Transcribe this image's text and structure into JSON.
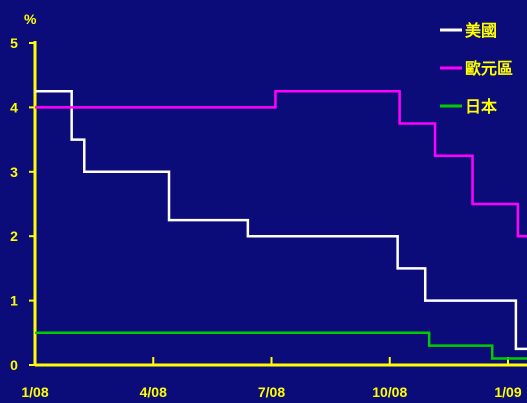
{
  "chart_data": {
    "type": "line",
    "title": "",
    "ylabel": "%",
    "xlabel": "",
    "ylim": [
      0,
      5
    ],
    "y_ticks": [
      "0",
      "1",
      "2",
      "3",
      "4",
      "5"
    ],
    "x_tick_labels": [
      "1/08",
      "4/08",
      "7/08",
      "10/08",
      "1/09"
    ],
    "x_tick_month_index": [
      0,
      3,
      6,
      9,
      12
    ],
    "x_range_month_index": [
      0,
      12
    ],
    "grid": false,
    "legend_position": "top-right",
    "background_color": "#0B0B7A",
    "axis_color": "#FFFF00",
    "series": [
      {
        "name": "美國",
        "color": "#FFFFFF",
        "step": true,
        "x": [
          0,
          0.93,
          1.25,
          3.4,
          5.4,
          9.2,
          9.9,
          12.2
        ],
        "values": [
          4.25,
          3.5,
          3.0,
          2.25,
          2.0,
          1.5,
          1.0,
          0.25
        ]
      },
      {
        "name": "歐元區",
        "color": "#FF00FF",
        "step": true,
        "x": [
          0,
          6.1,
          9.25,
          10.15,
          11.1,
          12.25
        ],
        "values": [
          4.0,
          4.25,
          3.75,
          3.25,
          2.5,
          2.0
        ]
      },
      {
        "name": "日本",
        "color": "#00CC00",
        "step": true,
        "x": [
          0,
          10.0,
          11.6
        ],
        "values": [
          0.5,
          0.3,
          0.1
        ]
      }
    ]
  }
}
